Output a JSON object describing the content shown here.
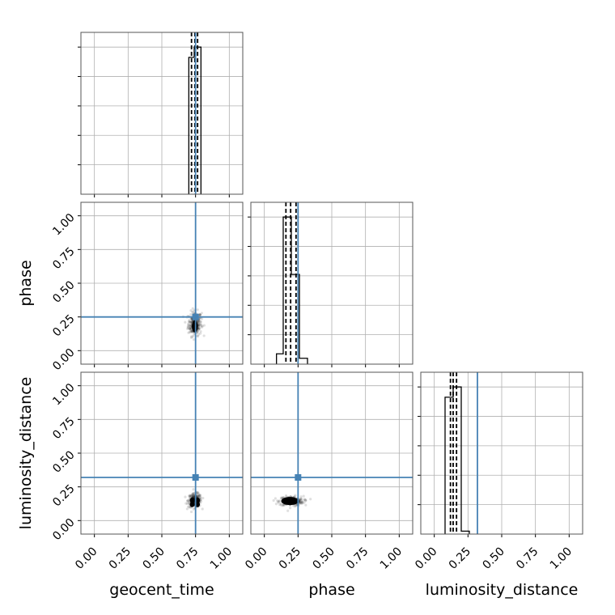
{
  "chart_data": {
    "type": "corner",
    "parameters": [
      "geocent_time",
      "phase",
      "luminosity_distance"
    ],
    "axis_labels": {
      "x": [
        "geocent_time",
        "phase",
        "luminosity_distance"
      ],
      "y": [
        "phase",
        "luminosity_distance"
      ]
    },
    "range": [
      -0.1,
      1.1
    ],
    "ticks": [
      0.0,
      0.25,
      0.5,
      0.75,
      1.0
    ],
    "tick_labels": [
      "0.00",
      "0.25",
      "0.50",
      "0.75",
      "1.00"
    ],
    "grid": true,
    "truths": [
      0.75,
      0.25,
      0.32
    ],
    "truth_color": "#4682b4",
    "histogram_color": "#000000",
    "histograms": [
      {
        "parameter": "geocent_time",
        "bins": [
          [
            0.7,
            0.74,
            0.93
          ],
          [
            0.74,
            0.79,
            1.0
          ]
        ],
        "quantiles": [
          0.72,
          0.745,
          0.765
        ],
        "ymax": 1.1
      },
      {
        "parameter": "phase",
        "bins": [
          [
            0.09,
            0.14,
            0.07
          ],
          [
            0.14,
            0.2,
            1.0
          ],
          [
            0.2,
            0.26,
            0.61
          ],
          [
            0.26,
            0.32,
            0.04
          ]
        ],
        "quantiles": [
          0.16,
          0.195,
          0.235
        ],
        "ymax": 1.1
      },
      {
        "parameter": "luminosity_distance",
        "bins": [
          [
            0.08,
            0.14,
            0.93
          ],
          [
            0.14,
            0.2,
            1.0
          ],
          [
            0.2,
            0.26,
            0.02
          ]
        ],
        "quantiles": [
          0.12,
          0.14,
          0.165
        ],
        "ymax": 1.1
      }
    ],
    "scatter_panels": [
      {
        "x": "geocent_time",
        "y": "phase",
        "center": [
          0.745,
          0.2
        ],
        "spread": [
          0.025,
          0.045
        ],
        "core": [
          [
            0.745,
            0.18
          ]
        ],
        "core_size": [
          0.045,
          0.09
        ]
      },
      {
        "x": "geocent_time",
        "y": "luminosity_distance",
        "center": [
          0.745,
          0.15
        ],
        "spread": [
          0.025,
          0.025
        ],
        "core": [
          [
            0.725,
            0.15
          ],
          [
            0.765,
            0.15
          ],
          [
            0.725,
            0.12
          ],
          [
            0.765,
            0.12
          ]
        ],
        "core_size": [
          0.035,
          0.04
        ]
      },
      {
        "x": "phase",
        "y": "luminosity_distance",
        "center": [
          0.2,
          0.145
        ],
        "spread": [
          0.045,
          0.018
        ],
        "core": [
          [
            0.19,
            0.145
          ]
        ],
        "core_size": [
          0.13,
          0.06
        ]
      }
    ]
  }
}
